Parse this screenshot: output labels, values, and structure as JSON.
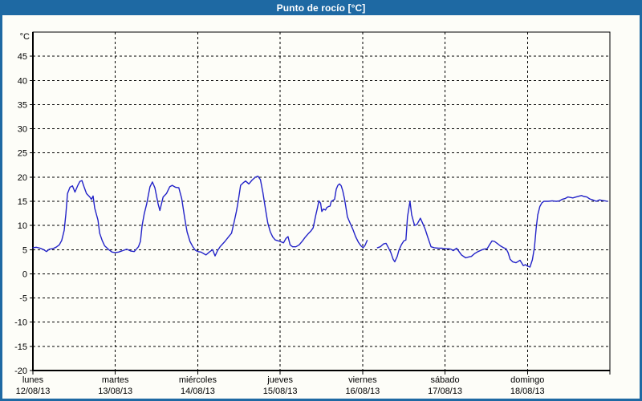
{
  "window": {
    "title": "Punto de rocío [°C]"
  },
  "colors": {
    "frame": "#1e69a3",
    "title_text": "#ffffff",
    "panel_background": "#fdfdf8",
    "plot_border": "#000000",
    "grid": "#000000",
    "text": "#000000",
    "line": "#2323c8"
  },
  "chart_data": {
    "type": "line",
    "title": "Punto de rocío [°C]",
    "y_unit_label": "°C",
    "ylim": [
      -20,
      50
    ],
    "y_grid_step": 5,
    "xlim_days": [
      0,
      7
    ],
    "grid": "dashed",
    "legend": "none",
    "y_ticks": [
      45,
      40,
      35,
      30,
      25,
      20,
      15,
      10,
      5,
      0,
      -5,
      -10,
      -15,
      -20
    ],
    "x_ticks": [
      {
        "t": 0,
        "day": "lunes",
        "date": "12/08/13"
      },
      {
        "t": 1,
        "day": "martes",
        "date": "13/08/13"
      },
      {
        "t": 2,
        "day": "miércoles",
        "date": "14/08/13"
      },
      {
        "t": 3,
        "day": "jueves",
        "date": "15/08/13"
      },
      {
        "t": 4,
        "day": "viernes",
        "date": "16/08/13"
      },
      {
        "t": 5,
        "day": "sábado",
        "date": "17/08/13"
      },
      {
        "t": 6,
        "day": "domingo",
        "date": "18/08/13"
      }
    ],
    "x_edge_tick_t": 7,
    "series": [
      {
        "name": "Punto de rocío",
        "color": "#2323c8",
        "segments": [
          [
            [
              0.0,
              5.4
            ],
            [
              0.04,
              5.5
            ],
            [
              0.09,
              5.3
            ],
            [
              0.13,
              5.0
            ],
            [
              0.165,
              4.6
            ],
            [
              0.2,
              5.1
            ],
            [
              0.24,
              5.2
            ],
            [
              0.28,
              5.5
            ],
            [
              0.32,
              6.0
            ],
            [
              0.35,
              6.9
            ],
            [
              0.38,
              9.0
            ],
            [
              0.4,
              12.4
            ],
            [
              0.42,
              16.6
            ],
            [
              0.45,
              17.9
            ],
            [
              0.48,
              18.2
            ],
            [
              0.51,
              16.9
            ],
            [
              0.545,
              18.3
            ],
            [
              0.57,
              19.1
            ],
            [
              0.595,
              19.3
            ],
            [
              0.62,
              18.0
            ],
            [
              0.65,
              16.6
            ],
            [
              0.69,
              15.9
            ],
            [
              0.71,
              15.4
            ],
            [
              0.73,
              16.1
            ],
            [
              0.75,
              13.6
            ],
            [
              0.79,
              11.1
            ],
            [
              0.81,
              8.4
            ],
            [
              0.84,
              6.9
            ],
            [
              0.87,
              5.8
            ],
            [
              0.92,
              5.0
            ],
            [
              0.96,
              4.5
            ],
            [
              1.0,
              4.4
            ],
            [
              1.04,
              4.5
            ],
            [
              1.09,
              4.8
            ],
            [
              1.14,
              5.1
            ],
            [
              1.19,
              4.7
            ],
            [
              1.23,
              4.6
            ],
            [
              1.28,
              5.6
            ],
            [
              1.305,
              6.7
            ],
            [
              1.325,
              10.0
            ],
            [
              1.35,
              12.4
            ],
            [
              1.38,
              14.4
            ],
            [
              1.42,
              18.0
            ],
            [
              1.45,
              19.0
            ],
            [
              1.48,
              17.8
            ],
            [
              1.52,
              14.4
            ],
            [
              1.54,
              13.1
            ],
            [
              1.58,
              15.9
            ],
            [
              1.62,
              16.6
            ],
            [
              1.66,
              18.0
            ],
            [
              1.69,
              18.3
            ],
            [
              1.73,
              17.9
            ],
            [
              1.77,
              17.8
            ],
            [
              1.805,
              15.6
            ],
            [
              1.84,
              11.7
            ],
            [
              1.87,
              8.7
            ],
            [
              1.905,
              6.7
            ],
            [
              1.94,
              5.6
            ],
            [
              1.97,
              4.9
            ],
            [
              2.0,
              4.6
            ],
            [
              2.04,
              4.5
            ],
            [
              2.07,
              4.2
            ],
            [
              2.1,
              3.9
            ],
            [
              2.14,
              4.5
            ],
            [
              2.18,
              5.0
            ],
            [
              2.21,
              3.7
            ],
            [
              2.24,
              4.8
            ],
            [
              2.27,
              5.6
            ],
            [
              2.33,
              6.7
            ],
            [
              2.38,
              7.8
            ],
            [
              2.41,
              8.4
            ],
            [
              2.44,
              10.6
            ],
            [
              2.47,
              13.0
            ],
            [
              2.49,
              15.0
            ],
            [
              2.52,
              18.3
            ],
            [
              2.55,
              18.8
            ],
            [
              2.58,
              19.2
            ],
            [
              2.62,
              18.6
            ],
            [
              2.66,
              19.4
            ],
            [
              2.7,
              20.0
            ],
            [
              2.73,
              20.2
            ],
            [
              2.76,
              19.5
            ],
            [
              2.79,
              16.8
            ],
            [
              2.82,
              13.5
            ],
            [
              2.85,
              10.5
            ],
            [
              2.88,
              8.7
            ],
            [
              2.91,
              7.6
            ],
            [
              2.94,
              7.0
            ],
            [
              2.98,
              6.8
            ],
            [
              3.0,
              6.7
            ],
            [
              3.04,
              6.4
            ],
            [
              3.07,
              7.3
            ],
            [
              3.095,
              7.7
            ],
            [
              3.12,
              6.0
            ],
            [
              3.15,
              5.6
            ],
            [
              3.19,
              5.6
            ],
            [
              3.23,
              6.0
            ],
            [
              3.27,
              6.8
            ],
            [
              3.3,
              7.5
            ],
            [
              3.34,
              8.3
            ],
            [
              3.37,
              8.8
            ],
            [
              3.4,
              9.5
            ],
            [
              3.43,
              12.0
            ],
            [
              3.45,
              13.5
            ],
            [
              3.47,
              15.1
            ],
            [
              3.49,
              14.6
            ],
            [
              3.505,
              12.9
            ],
            [
              3.525,
              13.4
            ],
            [
              3.55,
              13.2
            ],
            [
              3.565,
              13.7
            ],
            [
              3.585,
              13.9
            ],
            [
              3.605,
              14.0
            ],
            [
              3.62,
              15.0
            ],
            [
              3.64,
              15.2
            ],
            [
              3.66,
              15.4
            ],
            [
              3.68,
              17.5
            ],
            [
              3.7,
              18.3
            ],
            [
              3.72,
              18.6
            ],
            [
              3.74,
              18.2
            ],
            [
              3.76,
              17.1
            ],
            [
              3.78,
              15.5
            ],
            [
              3.795,
              14.0
            ],
            [
              3.815,
              11.8
            ],
            [
              3.835,
              11.0
            ],
            [
              3.855,
              10.2
            ],
            [
              3.885,
              9.1
            ],
            [
              3.915,
              7.7
            ],
            [
              3.95,
              6.5
            ],
            [
              3.98,
              5.8
            ],
            [
              4.005,
              5.4
            ],
            [
              4.03,
              5.9
            ],
            [
              4.055,
              6.9
            ]
          ],
          [
            [
              4.18,
              5.4
            ],
            [
              4.215,
              5.6
            ],
            [
              4.255,
              6.2
            ],
            [
              4.285,
              6.3
            ],
            [
              4.31,
              5.5
            ],
            [
              4.34,
              4.5
            ],
            [
              4.37,
              3.0
            ],
            [
              4.39,
              2.5
            ],
            [
              4.42,
              3.6
            ],
            [
              4.44,
              4.9
            ],
            [
              4.47,
              6.0
            ],
            [
              4.5,
              6.8
            ],
            [
              4.525,
              7.0
            ],
            [
              4.545,
              11.8
            ],
            [
              4.575,
              15.0
            ],
            [
              4.595,
              12.2
            ],
            [
              4.63,
              10.0
            ],
            [
              4.66,
              10.2
            ],
            [
              4.7,
              11.5
            ],
            [
              4.73,
              10.4
            ],
            [
              4.76,
              9.2
            ],
            [
              4.79,
              7.6
            ],
            [
              4.83,
              5.6
            ],
            [
              4.87,
              5.4
            ],
            [
              4.92,
              5.3
            ],
            [
              4.96,
              5.3
            ],
            [
              5.0,
              5.2
            ],
            [
              5.04,
              5.2
            ],
            [
              5.07,
              5.1
            ],
            [
              5.1,
              4.8
            ],
            [
              5.14,
              5.3
            ],
            [
              5.17,
              4.6
            ],
            [
              5.2,
              3.9
            ],
            [
              5.25,
              3.3
            ],
            [
              5.29,
              3.5
            ],
            [
              5.32,
              3.6
            ],
            [
              5.36,
              4.2
            ],
            [
              5.4,
              4.6
            ],
            [
              5.44,
              4.9
            ],
            [
              5.47,
              5.1
            ],
            [
              5.51,
              5.2
            ],
            [
              5.54,
              6.0
            ],
            [
              5.57,
              6.8
            ],
            [
              5.6,
              6.7
            ],
            [
              5.64,
              6.2
            ],
            [
              5.67,
              5.8
            ],
            [
              5.71,
              5.4
            ],
            [
              5.74,
              5.2
            ],
            [
              5.765,
              4.4
            ],
            [
              5.79,
              3.0
            ],
            [
              5.82,
              2.5
            ],
            [
              5.86,
              2.3
            ],
            [
              5.89,
              2.6
            ],
            [
              5.91,
              2.8
            ],
            [
              5.95,
              1.7
            ],
            [
              5.975,
              1.9
            ],
            [
              6.0,
              1.6
            ],
            [
              6.03,
              1.4
            ],
            [
              6.06,
              2.9
            ],
            [
              6.085,
              5.5
            ],
            [
              6.105,
              9.4
            ],
            [
              6.125,
              12.2
            ],
            [
              6.15,
              13.9
            ],
            [
              6.175,
              14.7
            ],
            [
              6.2,
              15.0
            ],
            [
              6.25,
              15.0
            ],
            [
              6.3,
              15.1
            ],
            [
              6.35,
              15.0
            ],
            [
              6.39,
              15.1
            ],
            [
              6.42,
              15.4
            ],
            [
              6.46,
              15.6
            ],
            [
              6.49,
              15.9
            ],
            [
              6.52,
              15.8
            ],
            [
              6.55,
              15.7
            ],
            [
              6.59,
              15.9
            ],
            [
              6.63,
              16.1
            ],
            [
              6.655,
              16.2
            ],
            [
              6.685,
              16.0
            ],
            [
              6.72,
              15.9
            ],
            [
              6.755,
              15.5
            ],
            [
              6.79,
              15.3
            ],
            [
              6.835,
              15.0
            ],
            [
              6.875,
              15.3
            ],
            [
              6.9,
              15.2
            ],
            [
              6.94,
              15.1
            ],
            [
              6.97,
              15.0
            ]
          ]
        ]
      }
    ]
  }
}
